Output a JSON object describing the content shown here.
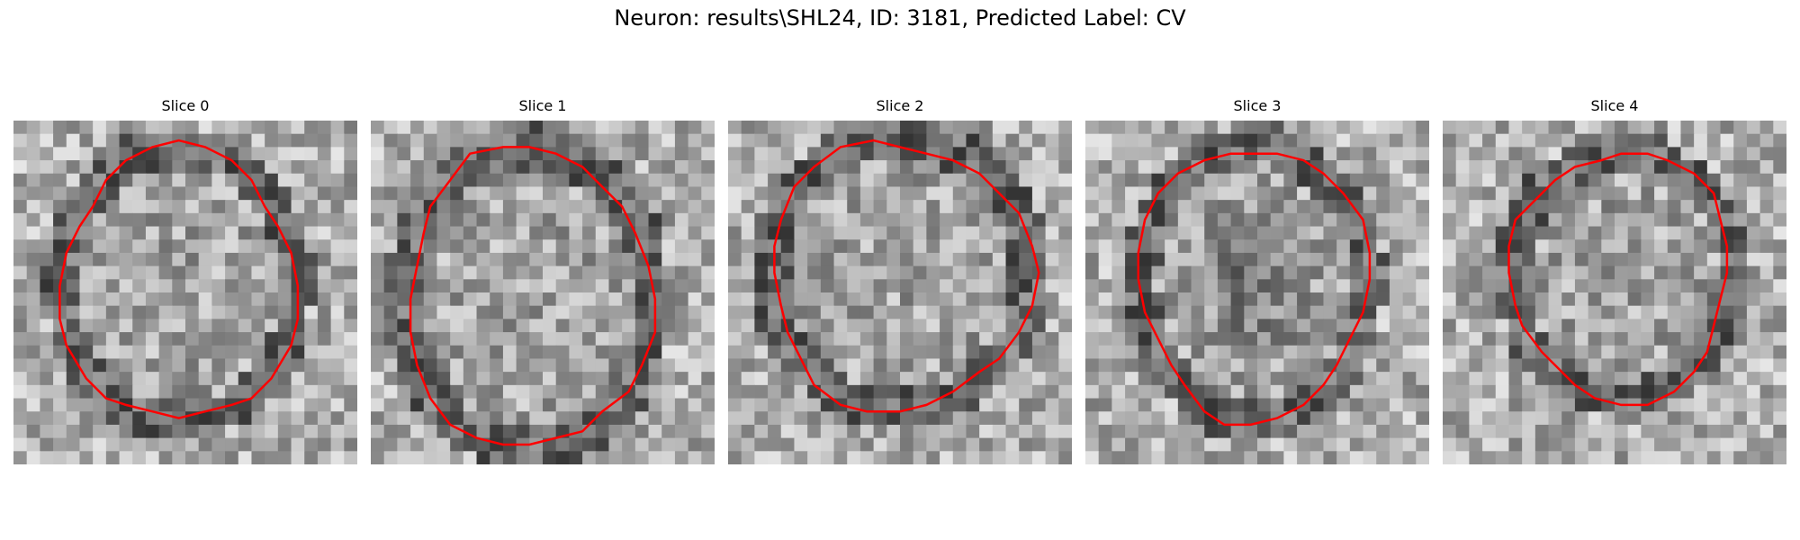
{
  "figure": {
    "title": "Neuron: results\\SHL24, ID: 3181, Predicted Label: CV"
  },
  "panels": [
    {
      "title": "Slice 0"
    },
    {
      "title": "Slice 1"
    },
    {
      "title": "Slice 2"
    },
    {
      "title": "Slice 3"
    },
    {
      "title": "Slice 4"
    }
  ],
  "colors": {
    "contour": "#ff0000",
    "background": "#ffffff"
  }
}
